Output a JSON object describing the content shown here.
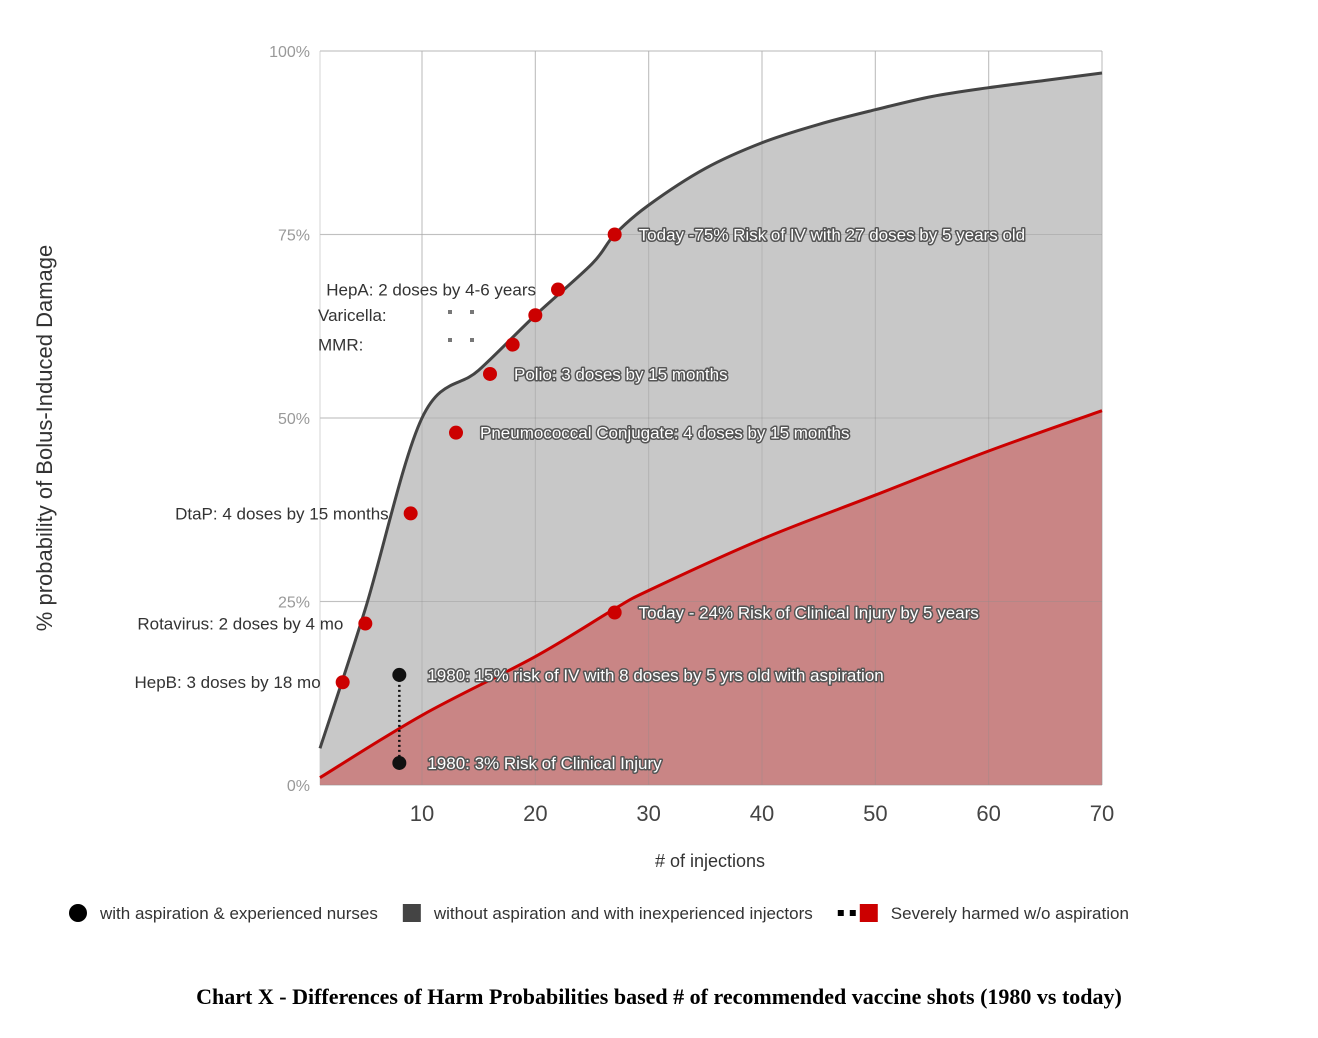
{
  "chart_data": {
    "type": "area",
    "xlabel": "# of injections",
    "ylabel": "% probability of Bolus-Induced Damage",
    "xlim": [
      1,
      70
    ],
    "ylim": [
      0,
      100
    ],
    "x_ticks": [
      "10",
      "20",
      "30",
      "40",
      "50",
      "60",
      "70"
    ],
    "x_tick_values": [
      10,
      20,
      30,
      40,
      50,
      60,
      70
    ],
    "y_ticks": [
      "0%",
      "25%",
      "50%",
      "75%",
      "100%"
    ],
    "y_tick_values": [
      0,
      25,
      50,
      75,
      100
    ],
    "grid": true,
    "legend_position": "bottom",
    "series": [
      {
        "name": "without aspiration and with inexperienced injectors",
        "color": "#444444",
        "fill": "#c8c8c8",
        "x": [
          1,
          5,
          10,
          15,
          20,
          25,
          27,
          30,
          35,
          40,
          45,
          50,
          55,
          60,
          65,
          70
        ],
        "y": [
          5,
          24,
          50,
          56.5,
          64,
          71,
          75,
          79,
          84,
          87.5,
          90,
          92,
          93.8,
          95,
          96,
          97
        ]
      },
      {
        "name": "Severely harmed w/o aspiration",
        "color": "#cc0000",
        "fill": "#c98585",
        "x": [
          1,
          10,
          20,
          27,
          30,
          40,
          50,
          60,
          70
        ],
        "y": [
          1,
          9.5,
          17.5,
          24,
          26.5,
          33.5,
          39.5,
          45.5,
          51
        ]
      },
      {
        "name": "with aspiration & experienced nurses",
        "color": "#000000",
        "x": [
          8,
          8
        ],
        "y": [
          15,
          3
        ]
      }
    ],
    "points": [
      {
        "x": 3,
        "y": 14,
        "label": "HepB: 3 doses by 18 mo",
        "side": "left"
      },
      {
        "x": 5,
        "y": 22,
        "label": "Rotavirus: 2 doses by 4 mo",
        "side": "left"
      },
      {
        "x": 9,
        "y": 37,
        "label": "DtaP: 4 doses by 15 months",
        "side": "left"
      },
      {
        "x": 13,
        "y": 48,
        "label": "Pneumococcal Conjugate:  4 doses by 15 months",
        "side": "right"
      },
      {
        "x": 16,
        "y": 56,
        "label": "Polio: 3 doses by 15 months",
        "side": "right"
      },
      {
        "x": 18,
        "y": 60,
        "label": "MMR:",
        "side": "left"
      },
      {
        "x": 20,
        "y": 64,
        "label": "Varicella:",
        "side": "left"
      },
      {
        "x": 22,
        "y": 67.5,
        "label": "HepA: 2 doses by 4-6 years",
        "side": "left"
      },
      {
        "x": 27,
        "y": 75,
        "label": "Today -75% Risk of IV with  27 doses by 5 years old",
        "side": "right"
      },
      {
        "x": 27,
        "y": 23.5,
        "label": "Today - 24% Risk of Clinical Injury by 5 years",
        "side": "right"
      }
    ],
    "aspiration_points": [
      {
        "x": 8,
        "y": 15,
        "label": "1980: 15% risk of IV with 8 doses by 5 yrs old with aspiration"
      },
      {
        "x": 8,
        "y": 3,
        "label": "1980: 3% Risk of Clinical Injury"
      }
    ],
    "legend": [
      {
        "label": "with aspiration & experienced nurses",
        "marker": "circle",
        "color": "#000000"
      },
      {
        "label": "without aspiration and with inexperienced injectors",
        "marker": "square",
        "color": "#444444"
      },
      {
        "label": "",
        "marker": "dots",
        "color": "#000000"
      },
      {
        "label": "Severely harmed w/o aspiration",
        "marker": "square",
        "color": "#cc0000"
      }
    ],
    "caption": "Chart X  - Differences of Harm Probabilities based # of recommended vaccine shots (1980 vs today)"
  }
}
